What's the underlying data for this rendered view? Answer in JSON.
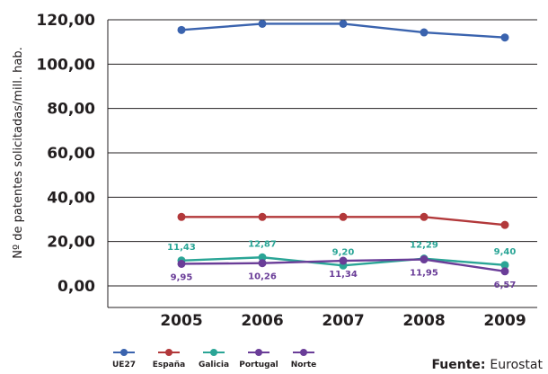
{
  "chart_data": {
    "type": "line",
    "title": "",
    "xlabel": "",
    "ylabel": "Nº de patentes solicitadas/mill. hab.",
    "x": [
      "2005",
      "2006",
      "2007",
      "2008",
      "2009"
    ],
    "ylim": [
      0,
      120
    ],
    "yticks": [
      "0,00",
      "20,00",
      "40,00",
      "60,00",
      "80,00",
      "100,00",
      "120,00"
    ],
    "grid": "horizontal",
    "legend_position": "bottom-left",
    "series": [
      {
        "name": "UE27",
        "color": "#3a63ae",
        "values": [
          115.4,
          118.2,
          118.2,
          114.3,
          112.0
        ]
      },
      {
        "name": "España",
        "color": "#b2383a",
        "values": [
          31.1,
          31.1,
          31.1,
          31.1,
          27.5
        ]
      },
      {
        "name": "Galicia",
        "color": "#2aa596",
        "values": [
          11.43,
          12.87,
          9.2,
          12.29,
          9.4
        ],
        "data_labels": [
          "11,43",
          "12,87",
          "9,20",
          "12,29",
          "9,40"
        ]
      },
      {
        "name": "Portugal",
        "color": "#6a3d98",
        "values": [
          9.95,
          10.26,
          11.34,
          11.95,
          6.57
        ],
        "data_labels": [
          "9,95",
          "10,26",
          "11,34",
          "11,95",
          "6,57"
        ]
      },
      {
        "name": "Norte",
        "color": "#6a3d98",
        "values": [
          null,
          null,
          null,
          null,
          null
        ]
      }
    ],
    "source": {
      "label": "Fuente:",
      "value": "Eurostat"
    }
  }
}
